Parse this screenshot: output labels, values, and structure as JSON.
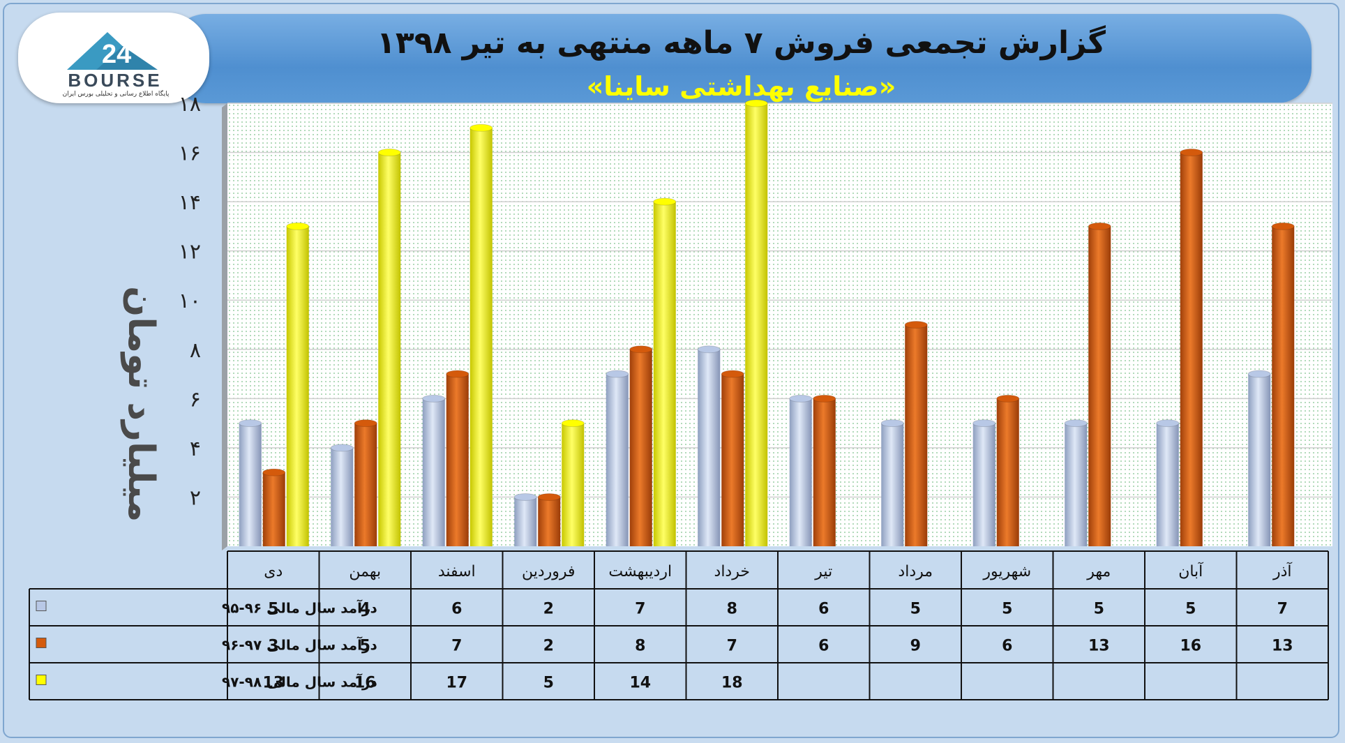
{
  "header": {
    "title": "گزارش تجمعی فروش ۷ ماهه منتهی به تیر ۱۳۹۸",
    "subtitle": "«صنایع بهداشتی ساینا»"
  },
  "logo": {
    "brand": "BOURSE",
    "tagline": "پایگاه اطلاع رسانی و تحلیلی بورس ایران"
  },
  "chart_data": {
    "type": "bar",
    "ylabel": "میلیارد تومان",
    "ylim": [
      0,
      18
    ],
    "ytick_labels": [
      "۲",
      "۴",
      "۶",
      "۸",
      "۱۰",
      "۱۲",
      "۱۴",
      "۱۶",
      "۱۸"
    ],
    "ytick_values": [
      2,
      4,
      6,
      8,
      10,
      12,
      14,
      16,
      18
    ],
    "categories": [
      "دی",
      "بهمن",
      "اسفند",
      "فروردین",
      "اردیبهشت",
      "خرداد",
      "تیر",
      "مرداد",
      "شهریور",
      "مهر",
      "آبان",
      "آذر"
    ],
    "series": [
      {
        "name": "درآمد سال مالی ۹۶-۹۵",
        "color": "#b8c8e6",
        "values": [
          5,
          4,
          6,
          2,
          7,
          8,
          6,
          5,
          5,
          5,
          5,
          7
        ],
        "display": [
          "5",
          "4",
          "6",
          "2",
          "7",
          "8",
          "6",
          "5",
          "5",
          "5",
          "5",
          "7"
        ]
      },
      {
        "name": "درآمد سال مالی ۹۷-۹۶",
        "color": "#d45a0c",
        "values": [
          3,
          5,
          7,
          2,
          8,
          7,
          6,
          9,
          6,
          13,
          16,
          13
        ],
        "display": [
          "3",
          "5",
          "7",
          "2",
          "8",
          "7",
          "6",
          "9",
          "6",
          "13",
          "16",
          "13"
        ]
      },
      {
        "name": "درآمد سال مالی ۹۸-۹۷",
        "color": "#ffff00",
        "values": [
          13,
          16,
          17,
          5,
          14,
          18,
          null,
          null,
          null,
          null,
          null,
          null
        ],
        "display": [
          "13",
          "16",
          "17",
          "5",
          "14",
          "18",
          "",
          "",
          "",
          "",
          "",
          ""
        ]
      }
    ],
    "grid": true,
    "legend": "data-table-left"
  }
}
